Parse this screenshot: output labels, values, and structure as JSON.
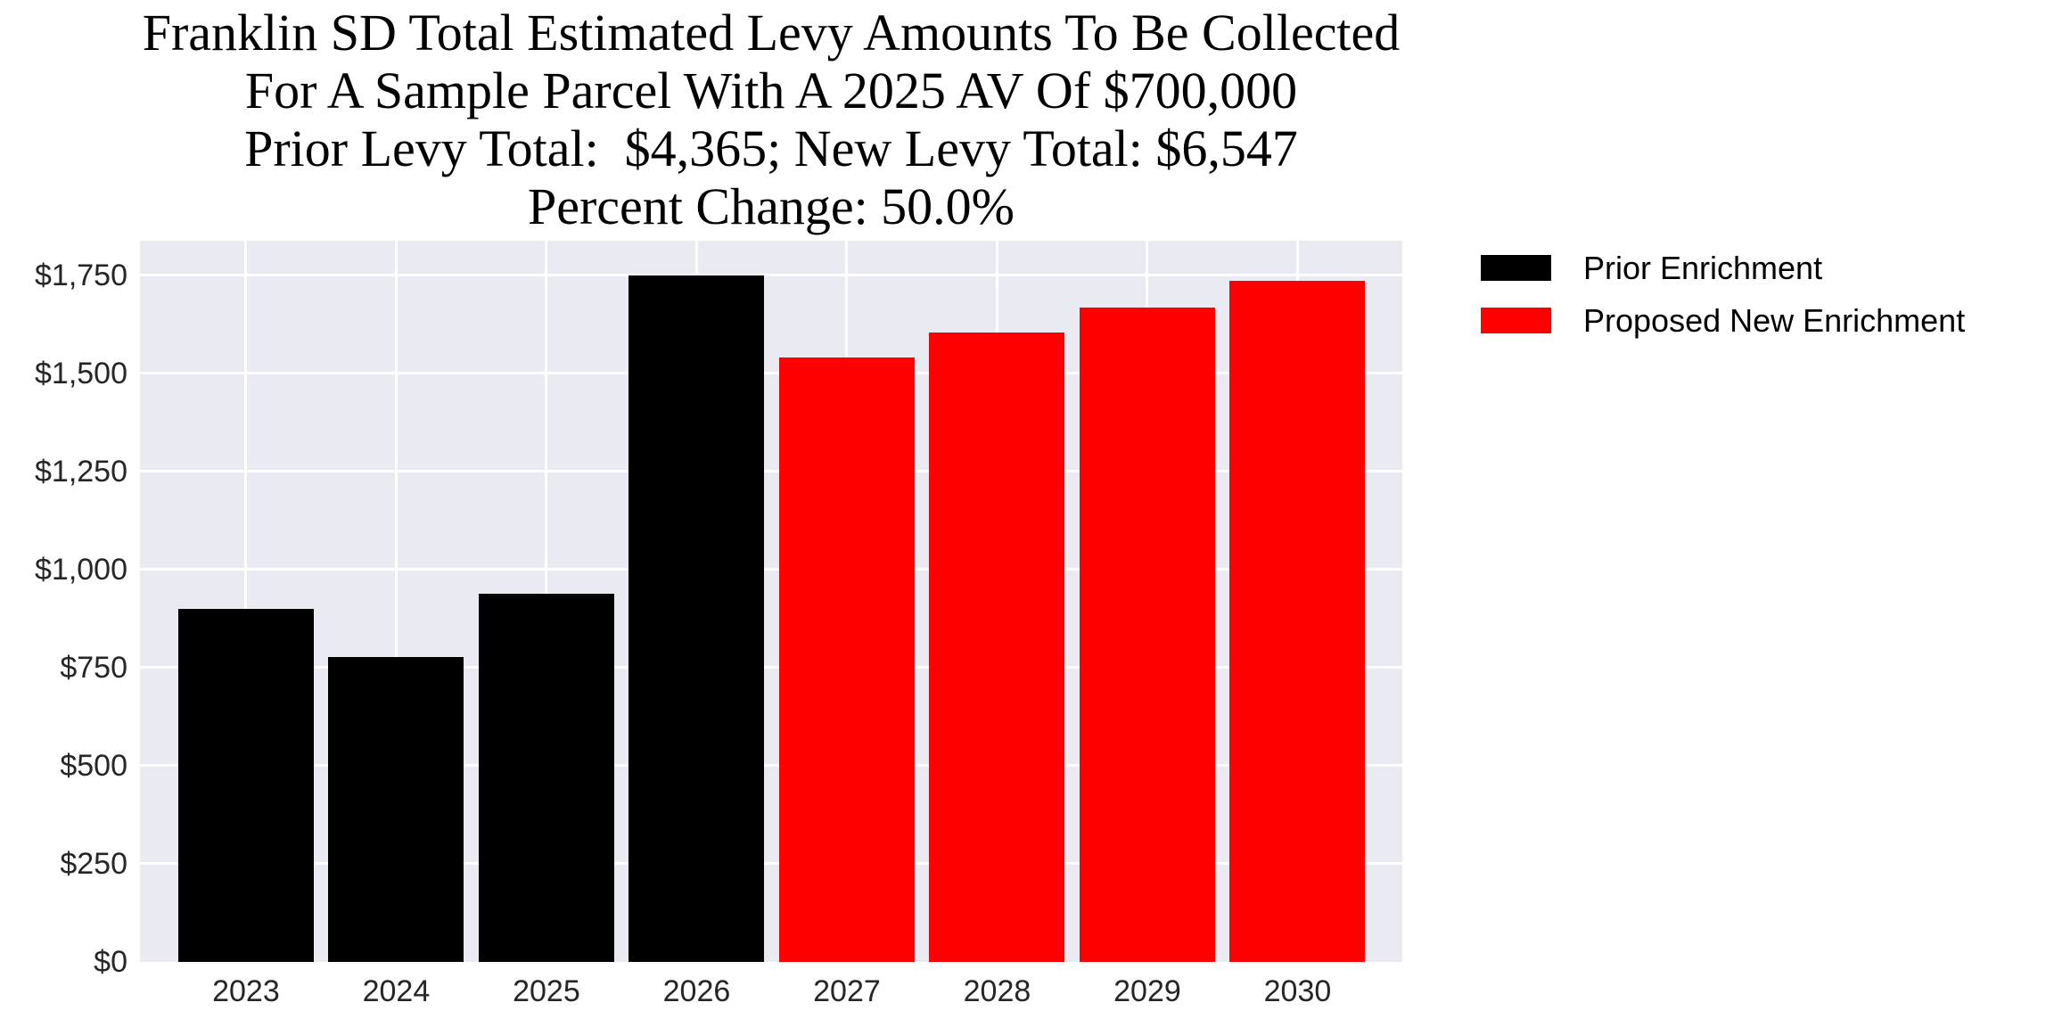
{
  "title": {
    "line1": "Franklin SD Total Estimated Levy Amounts To Be Collected",
    "line2": "For A Sample Parcel With A 2025 AV Of $700,000",
    "line3": "Prior Levy Total:  $4,365; New Levy Total: $6,547",
    "line4": "Percent Change: 50.0%"
  },
  "legend": {
    "items": [
      {
        "label": "Prior Enrichment",
        "color": "#000000"
      },
      {
        "label": "Proposed New Enrichment",
        "color": "#ff0000"
      }
    ],
    "position": "upper-right-outside",
    "frame": false
  },
  "chart_data": {
    "type": "bar",
    "title": "Franklin SD Total Estimated Levy Amounts To Be Collected\nFor A Sample Parcel With A 2025 AV Of $700,000\nPrior Levy Total:  $4,365; New Levy Total: $6,547\nPercent Change: 50.0%",
    "categories": [
      "2023",
      "2024",
      "2025",
      "2026",
      "2027",
      "2028",
      "2029",
      "2030"
    ],
    "series": [
      {
        "name": "Prior Enrichment",
        "color": "#000000",
        "values": [
          900,
          777,
          938,
          1750,
          null,
          null,
          null,
          null
        ]
      },
      {
        "name": "Proposed New Enrichment",
        "color": "#ff0000",
        "values": [
          null,
          null,
          null,
          null,
          1541,
          1603,
          1668,
          1735
        ]
      }
    ],
    "prior_levy_total": 4365,
    "new_levy_total": 6547,
    "percent_change": "50.0%",
    "xlabel": "",
    "ylabel": "",
    "ylim": [
      0,
      1837.5
    ],
    "y_ticks": [
      {
        "label": "$0",
        "value": 0
      },
      {
        "label": "$250",
        "value": 250
      },
      {
        "label": "$500",
        "value": 500
      },
      {
        "label": "$750",
        "value": 750
      },
      {
        "label": "$1,000",
        "value": 1000
      },
      {
        "label": "$1,250",
        "value": 1250
      },
      {
        "label": "$1,500",
        "value": 1500
      },
      {
        "label": "$1,750",
        "value": 1750
      }
    ],
    "grid": true,
    "plot_background": "#eaeaf2",
    "gridline_color": "#ffffff",
    "bar_centers_pct": [
      8.4,
      20.3,
      32.2,
      44.1,
      56.0,
      67.9,
      79.8,
      91.7
    ]
  }
}
